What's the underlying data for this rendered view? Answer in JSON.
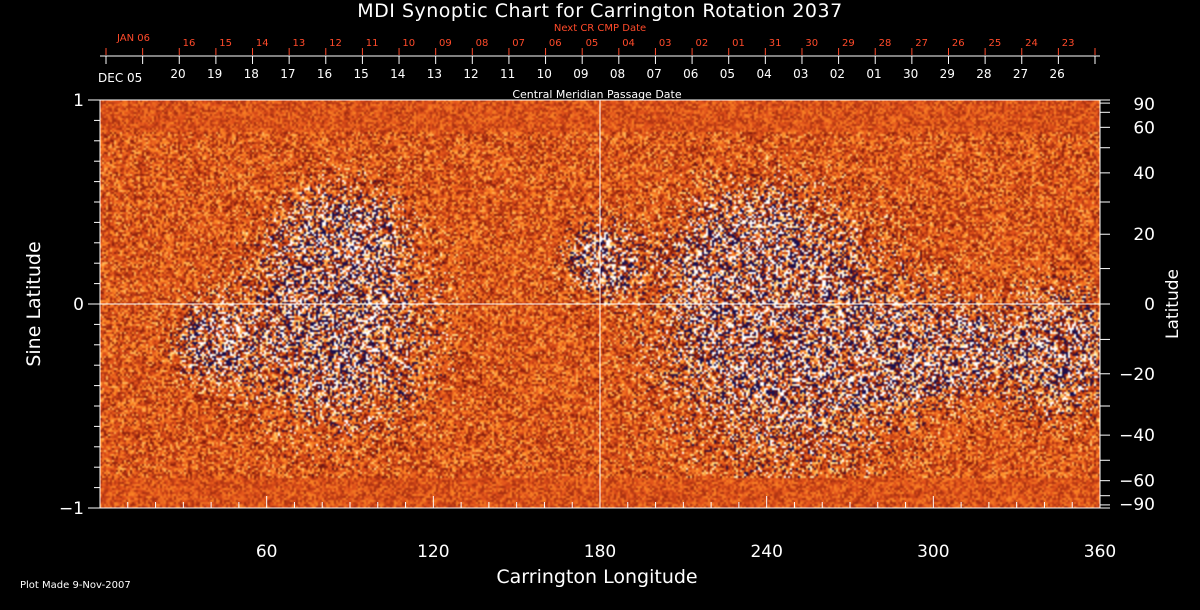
{
  "title": "MDI Synoptic Chart for Carrington Rotation 2037",
  "footer": "Plot Made  9-Nov-2007",
  "chart_data": {
    "type": "heatmap",
    "title": "MDI Synoptic Chart for Carrington Rotation 2037",
    "xlabel": "Carrington Longitude",
    "ylabel_left": "Sine Latitude",
    "ylabel_right": "Latitude",
    "xlim": [
      0,
      360
    ],
    "ylim": [
      -1,
      1
    ],
    "x_ticks": [
      60,
      120,
      180,
      240,
      300,
      360
    ],
    "y_ticks_left": [
      {
        "value": 1,
        "label": "1"
      },
      {
        "value": 0,
        "label": "0"
      },
      {
        "value": -1,
        "label": "−1"
      }
    ],
    "y_ticks_right": [
      {
        "deg": 90,
        "label": "90"
      },
      {
        "deg": 60,
        "label": "60"
      },
      {
        "deg": 40,
        "label": "40"
      },
      {
        "deg": 20,
        "label": "20"
      },
      {
        "deg": 0,
        "label": "0"
      },
      {
        "deg": -20,
        "label": "−20"
      },
      {
        "deg": -40,
        "label": "−40"
      },
      {
        "deg": -60,
        "label": "−60"
      },
      {
        "deg": -90,
        "label": "−90"
      }
    ],
    "cmp_axis": {
      "label": "Central Meridian Passage Date",
      "start_label": "DEC 05",
      "dates": [
        "20",
        "19",
        "18",
        "17",
        "16",
        "15",
        "14",
        "13",
        "12",
        "11",
        "10",
        "09",
        "08",
        "07",
        "06",
        "05",
        "04",
        "03",
        "02",
        "01",
        "30",
        "29",
        "28",
        "27",
        "26"
      ]
    },
    "next_cr_axis": {
      "label": "Next CR CMP Date",
      "start_label": "JAN 06",
      "dates": [
        "16",
        "15",
        "14",
        "13",
        "12",
        "11",
        "10",
        "09",
        "08",
        "07",
        "06",
        "05",
        "04",
        "03",
        "02",
        "01",
        "31",
        "30",
        "29",
        "28",
        "27",
        "26",
        "25",
        "24",
        "23"
      ]
    },
    "crosshair": {
      "longitude": 180,
      "sine_latitude": 0
    },
    "active_regions": [
      {
        "lon": 87,
        "sinlat": 0.31,
        "spread": 6
      },
      {
        "lon": 84,
        "sinlat": -0.14,
        "spread": 11
      },
      {
        "lon": 40,
        "sinlat": -0.18,
        "spread": 4
      },
      {
        "lon": 180,
        "sinlat": 0.22,
        "spread": 4
      },
      {
        "lon": 235,
        "sinlat": 0.16,
        "spread": 8
      },
      {
        "lon": 248,
        "sinlat": -0.2,
        "spread": 14
      },
      {
        "lon": 282,
        "sinlat": -0.25,
        "spread": 4
      },
      {
        "lon": 305,
        "sinlat": -0.22,
        "spread": 5
      },
      {
        "lon": 345,
        "sinlat": -0.23,
        "spread": 7
      }
    ],
    "colors": {
      "background": "#000000",
      "field_mid": "#e0501a",
      "positive": "#ffffff",
      "negative": "#1a1050",
      "secondary_axis": "#ff4a2a",
      "axis": "#ffffff"
    }
  }
}
